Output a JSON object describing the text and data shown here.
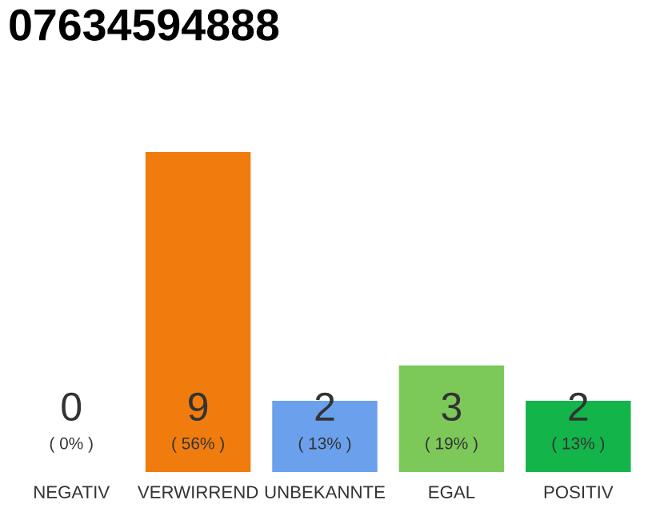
{
  "chart_data": {
    "type": "bar",
    "title": "07634594888",
    "categories": [
      "NEGATIV",
      "VERWIRREND",
      "UNBEKANNTE",
      "EGAL",
      "POSITIV"
    ],
    "values": [
      0,
      9,
      2,
      3,
      2
    ],
    "colors": [
      "#808080",
      "#f07c0e",
      "#6aa0ec",
      "#7cc95a",
      "#13b54a"
    ],
    "value_labels": [
      "0",
      "9",
      "2",
      "3",
      "2"
    ],
    "annotations": [
      "( 0% )",
      "( 56% )",
      "( 13% )",
      "( 19% )",
      "( 13% )"
    ],
    "grid": false,
    "legend": false
  }
}
